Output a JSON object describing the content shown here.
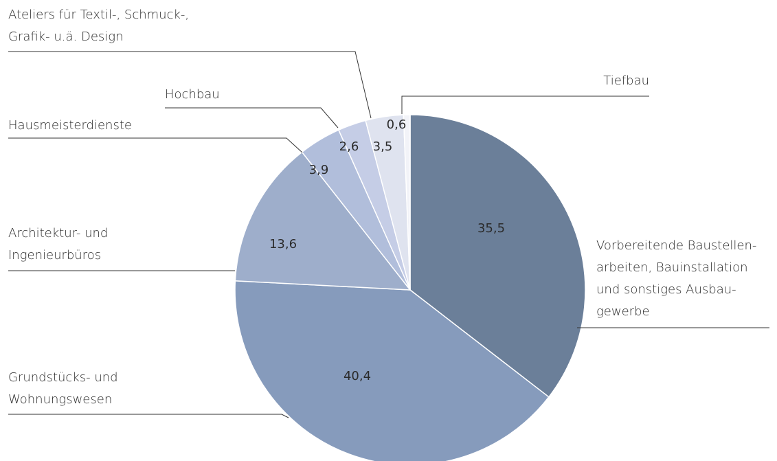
{
  "chart_data": {
    "type": "pie",
    "categories": [
      "Vorbereitende Baustellen-\narbeiten, Bauinstallation\nund sonstiges Ausbau-\ngewerbe",
      "Grundstücks- und\nWohnungswesen",
      "Architektur- und\nIngenieurbüros",
      "Hausmeisterdienste",
      "Hochbau",
      "Ateliers für Textil-, Schmuck-,\nGrafik- u.ä. Design",
      "Tiefbau"
    ],
    "values": [
      35.5,
      40.4,
      13.6,
      3.9,
      2.6,
      3.5,
      0.6
    ],
    "value_labels": [
      "35,5",
      "40,4",
      "13,6",
      "3,9",
      "2,6",
      "3,5",
      "0,6"
    ],
    "colors": [
      "#6b7f99",
      "#869bbc",
      "#9eaecb",
      "#b1bedb",
      "#c5cde6",
      "#dfe3ef",
      "#f2f3f8"
    ]
  }
}
